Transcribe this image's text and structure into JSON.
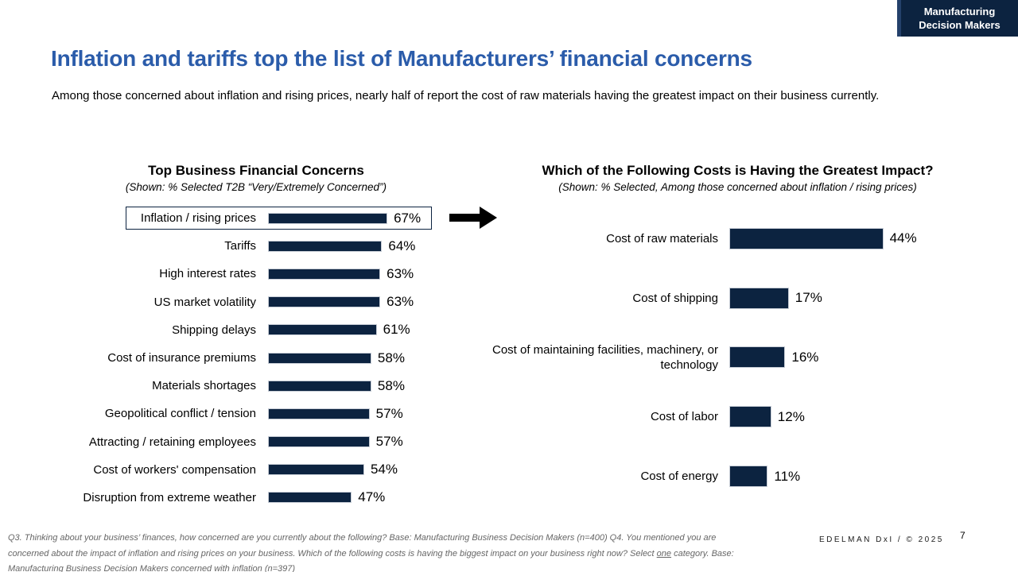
{
  "slide": {
    "badge": {
      "line1": "Manufacturing",
      "line2": "Decision Makers"
    },
    "title": "Inflation and tariffs top the list of Manufacturers’ financial concerns",
    "subtitle": "Among those concerned about inflation and rising prices, nearly half of report the cost of raw materials having the greatest impact on their business currently.",
    "footer": {
      "line1": "Q3. Thinking about your business’ finances, how concerned are you currently about the following? Base: Manufacturing Business Decision Makers  (n=400) Q4. You mentioned you are",
      "line2_pre": "concerned about the impact of inflation and rising prices on your business. Which of the following costs is having the biggest impact on your business right now? Select ",
      "line2_underlined": "one",
      "line2_post": " category. Base:",
      "line3": "Manufacturing Business Decision Makers concerned with inflation  (n=397)",
      "brand": "EDELMAN DxI / © 2025",
      "page_number": "7"
    },
    "colors": {
      "navy": "#0c2340",
      "title_blue": "#2b5caa"
    }
  },
  "chart_data": [
    {
      "type": "bar",
      "orientation": "horizontal",
      "title": "Top Business Financial Concerns",
      "subtitle": "(Shown: % Selected T2B “Very/Extremely Concerned”)",
      "categories": [
        "Inflation / rising prices",
        "Tariffs",
        "High interest rates",
        "US market volatility",
        "Shipping delays",
        "Cost of insurance premiums",
        "Materials shortages",
        "Geopolitical conflict / tension",
        "Attracting / retaining employees",
        "Cost of workers' compensation",
        "Disruption from extreme weather"
      ],
      "values": [
        67,
        64,
        63,
        63,
        61,
        58,
        58,
        57,
        57,
        54,
        47
      ],
      "value_suffix": "%",
      "highlight_category": "Inflation / rising prices",
      "bar_color": "#0c2340",
      "xlim": [
        0,
        100
      ],
      "grid": false,
      "legend": false
    },
    {
      "type": "bar",
      "orientation": "horizontal",
      "title": "Which of the Following Costs is Having the Greatest Impact?",
      "subtitle": "(Shown: % Selected, Among those concerned about inflation / rising prices)",
      "categories": [
        "Cost of raw materials",
        "Cost of shipping",
        "Cost of maintaining facilities, machinery, or technology",
        "Cost of labor",
        "Cost of energy"
      ],
      "values": [
        44,
        17,
        16,
        12,
        11
      ],
      "value_suffix": "%",
      "bar_color": "#0c2340",
      "xlim": [
        0,
        100
      ],
      "grid": false,
      "legend": false
    }
  ]
}
